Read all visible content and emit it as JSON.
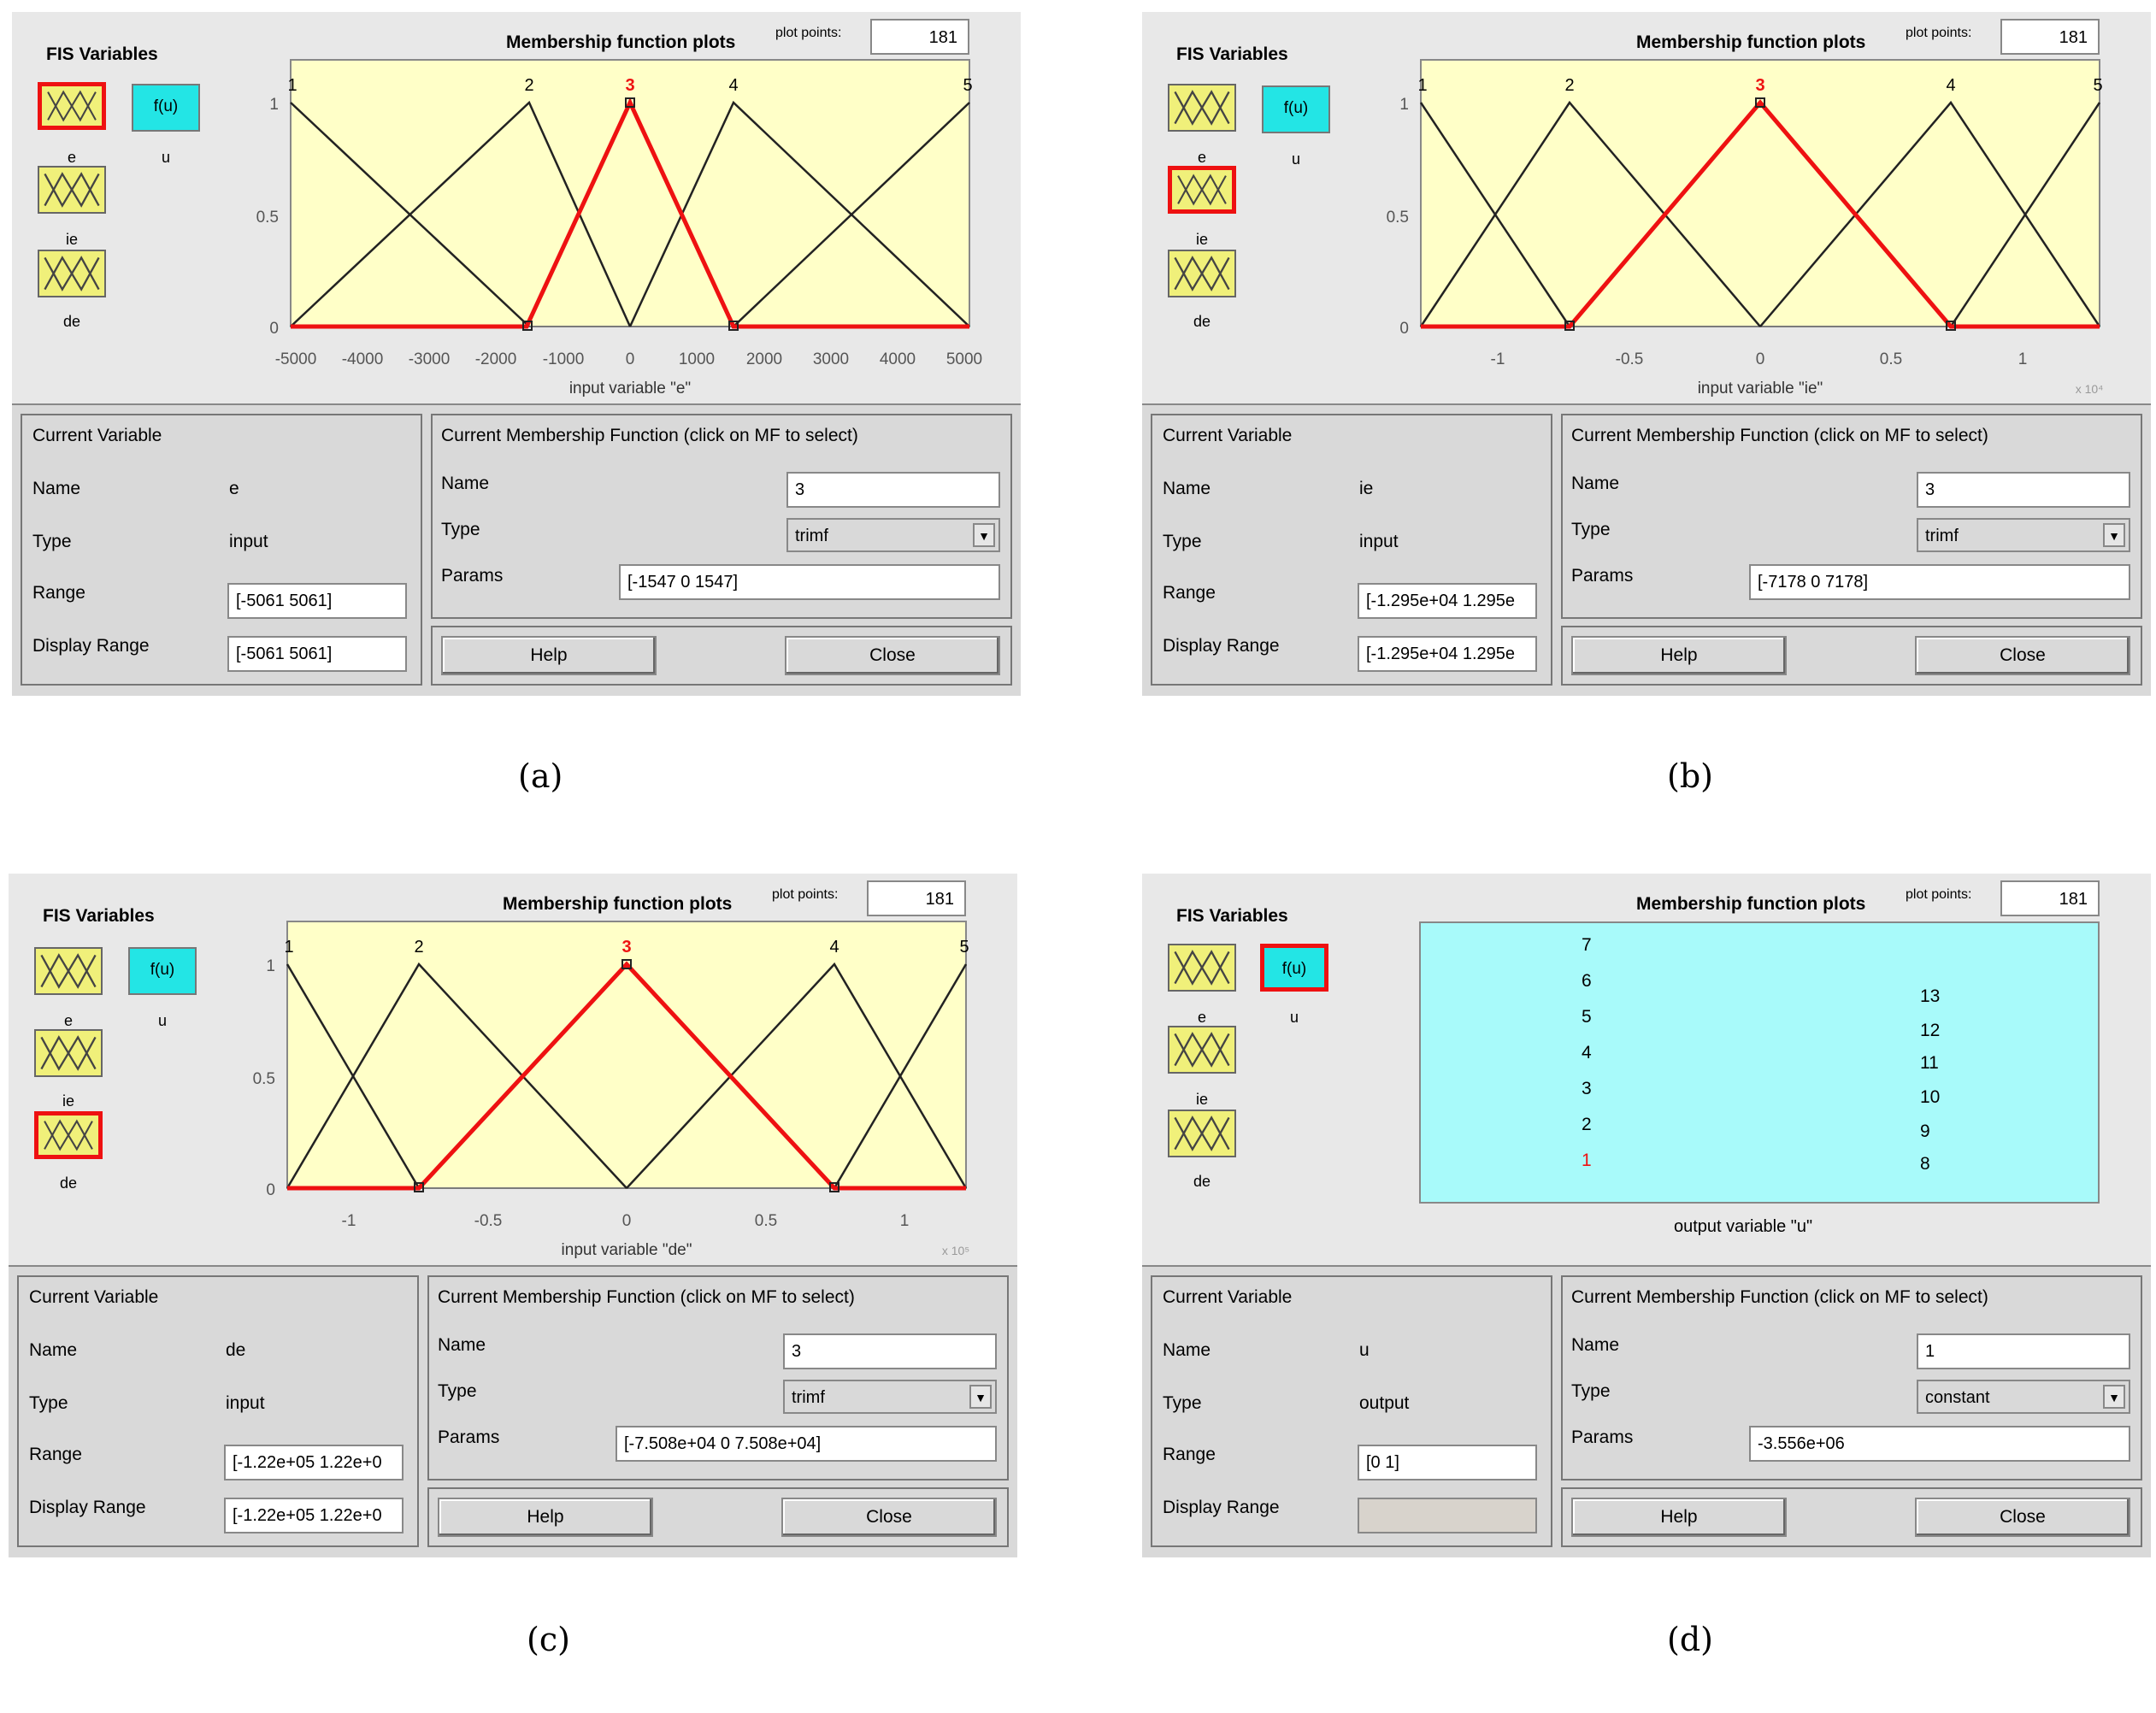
{
  "panels": {
    "a": {
      "fis_title": "FIS Variables",
      "vars": {
        "e": "e",
        "ie": "ie",
        "de": "de",
        "u": "u",
        "fu": "f(u)"
      },
      "plot_title": "Membership function plots",
      "plot_points_label": "plot points:",
      "plot_points": "181",
      "x_ticks": [
        "-5000",
        "-4000",
        "-3000",
        "-2000",
        "-1000",
        "0",
        "1000",
        "2000",
        "3000",
        "4000",
        "5000"
      ],
      "y_ticks": [
        "0",
        "0.5",
        "1"
      ],
      "mf_names": [
        "1",
        "2",
        "3",
        "4",
        "5"
      ],
      "xlabel": "input variable \"e\"",
      "current_variable": {
        "title": "Current Variable",
        "name_label": "Name",
        "name": "e",
        "type_label": "Type",
        "type": "input",
        "range_label": "Range",
        "range": "[-5061 5061]",
        "display_range_label": "Display Range",
        "display_range": "[-5061 5061]"
      },
      "current_mf": {
        "title": "Current Membership Function (click on MF to select)",
        "name_label": "Name",
        "name": "3",
        "type_label": "Type",
        "type": "trimf",
        "params_label": "Params",
        "params": "[-1547 0 1547]"
      },
      "help": "Help",
      "close": "Close",
      "caption": "(a)"
    },
    "b": {
      "fis_title": "FIS Variables",
      "vars": {
        "e": "e",
        "ie": "ie",
        "de": "de",
        "u": "u",
        "fu": "f(u)"
      },
      "plot_title": "Membership function plots",
      "plot_points_label": "plot points:",
      "plot_points": "181",
      "x_ticks": [
        "-1",
        "-0.5",
        "0",
        "0.5",
        "1"
      ],
      "y_ticks": [
        "0",
        "0.5",
        "1"
      ],
      "mf_names": [
        "1",
        "2",
        "3",
        "4",
        "5"
      ],
      "xlabel": "input variable \"ie\"",
      "x_exp": "x 10⁴",
      "current_variable": {
        "title": "Current Variable",
        "name_label": "Name",
        "name": "ie",
        "type_label": "Type",
        "type": "input",
        "range_label": "Range",
        "range": "[-1.295e+04 1.295e",
        "display_range_label": "Display Range",
        "display_range": "[-1.295e+04 1.295e"
      },
      "current_mf": {
        "title": "Current Membership Function (click on MF to select)",
        "name_label": "Name",
        "name": "3",
        "type_label": "Type",
        "type": "trimf",
        "params_label": "Params",
        "params": "[-7178 0 7178]"
      },
      "help": "Help",
      "close": "Close",
      "caption": "(b)"
    },
    "c": {
      "fis_title": "FIS Variables",
      "vars": {
        "e": "e",
        "ie": "ie",
        "de": "de",
        "u": "u",
        "fu": "f(u)"
      },
      "plot_title": "Membership function plots",
      "plot_points_label": "plot points:",
      "plot_points": "181",
      "x_ticks": [
        "-1",
        "-0.5",
        "0",
        "0.5",
        "1"
      ],
      "y_ticks": [
        "0",
        "0.5",
        "1"
      ],
      "mf_names": [
        "1",
        "2",
        "3",
        "4",
        "5"
      ],
      "xlabel": "input variable \"de\"",
      "x_exp": "x 10⁵",
      "current_variable": {
        "title": "Current Variable",
        "name_label": "Name",
        "name": "de",
        "type_label": "Type",
        "type": "input",
        "range_label": "Range",
        "range": "[-1.22e+05 1.22e+0",
        "display_range_label": "Display Range",
        "display_range": "[-1.22e+05 1.22e+0"
      },
      "current_mf": {
        "title": "Current Membership Function (click on MF to select)",
        "name_label": "Name",
        "name": "3",
        "type_label": "Type",
        "type": "trimf",
        "params_label": "Params",
        "params": "[-7.508e+04 0 7.508e+04]"
      },
      "help": "Help",
      "close": "Close",
      "caption": "(c)"
    },
    "d": {
      "fis_title": "FIS Variables",
      "vars": {
        "e": "e",
        "ie": "ie",
        "de": "de",
        "u": "u",
        "fu": "f(u)"
      },
      "plot_title": "Membership function plots",
      "plot_points_label": "plot points:",
      "plot_points": "181",
      "output_mfs_left": [
        "7",
        "6",
        "5",
        "4",
        "3",
        "2",
        "1"
      ],
      "output_mfs_right": [
        "13",
        "12",
        "11",
        "10",
        "9",
        "8"
      ],
      "xlabel": "output variable \"u\"",
      "current_variable": {
        "title": "Current Variable",
        "name_label": "Name",
        "name": "u",
        "type_label": "Type",
        "type": "output",
        "range_label": "Range",
        "range": "[0 1]",
        "display_range_label": "Display Range",
        "display_range": ""
      },
      "current_mf": {
        "title": "Current Membership Function (click on MF to select)",
        "name_label": "Name",
        "name": "1",
        "type_label": "Type",
        "type": "constant",
        "params_label": "Params",
        "params": "-3.556e+06"
      },
      "help": "Help",
      "close": "Close",
      "caption": "(d)"
    }
  },
  "colors": {
    "selected": "#ee1111",
    "plot_bg": "#ffffc8",
    "output_bg": "#a8fafa",
    "input_icon": "#f0f07a",
    "output_icon": "#23e5e5"
  }
}
